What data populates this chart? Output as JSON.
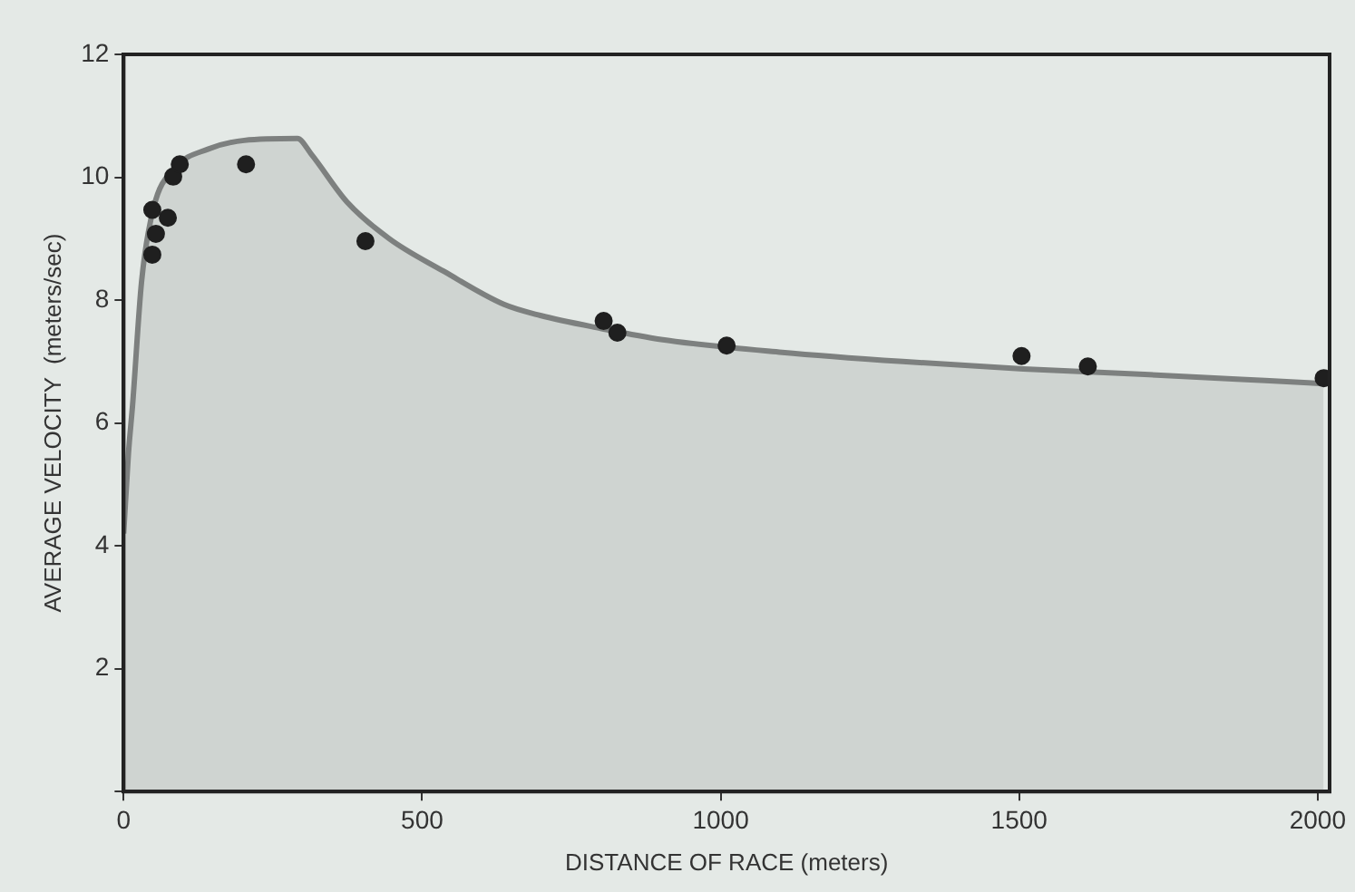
{
  "chart_data": {
    "type": "scatter",
    "xlabel": "DISTANCE OF RACE (meters)",
    "ylabel": "AVERAGE VELOCITY  (meters/sec)",
    "xlim": [
      0,
      2020
    ],
    "xticks": [
      0,
      500,
      1000,
      1500,
      2000
    ],
    "ylim": [
      0,
      12
    ],
    "yticks": [
      {
        "value": 0,
        "label": null
      },
      2,
      4,
      6,
      8,
      10,
      12
    ],
    "grid": false,
    "legend": false,
    "marker": "circle",
    "series": [
      {
        "type": "area",
        "color": "#7d807f",
        "marker": "none",
        "x": [
          0,
          8,
          15,
          30,
          50,
          86,
          142,
          202,
          291,
          314,
          374,
          445,
          536,
          637,
          698,
          799,
          900,
          1103,
          1305,
          1507,
          1710,
          1912,
          2010
        ],
        "values": [
          4.2,
          5.5,
          6.3,
          8.3,
          9.5,
          10.15,
          10.46,
          10.6,
          10.63,
          10.38,
          9.6,
          9.0,
          8.47,
          7.93,
          7.75,
          7.54,
          7.36,
          7.15,
          7.0,
          6.88,
          6.79,
          6.69,
          6.64
        ]
      },
      {
        "color": "#1f1f1f",
        "x": [
          48,
          54,
          48,
          74,
          83,
          94,
          205,
          405,
          804,
          827,
          1010,
          1504,
          1615,
          2010
        ],
        "values": [
          8.74,
          9.08,
          9.47,
          9.34,
          10.01,
          10.21,
          10.21,
          8.96,
          7.66,
          7.47,
          7.26,
          7.09,
          6.92,
          6.73
        ]
      }
    ]
  }
}
